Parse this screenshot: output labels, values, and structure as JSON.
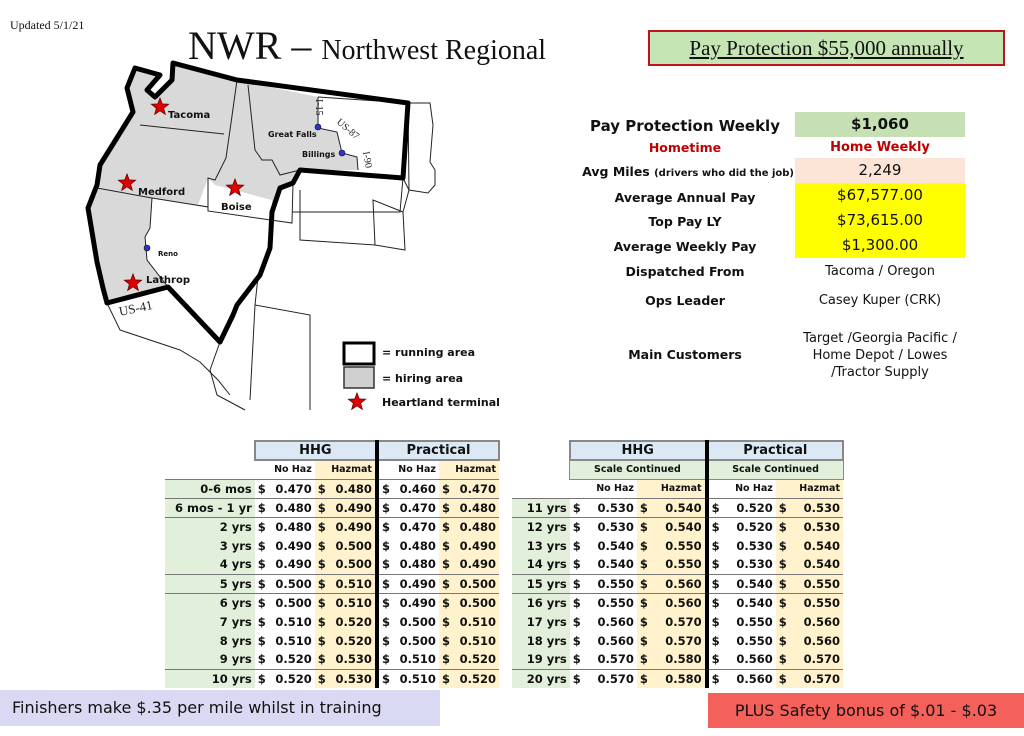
{
  "updated": "Updated 5/1/21",
  "title": {
    "main": "NWR – ",
    "sub": "Northwest Regional"
  },
  "pay_protection_banner": "Pay Protection $55,000 annually",
  "map": {
    "terminals": [
      "Tacoma",
      "Medford",
      "Boise",
      "Lathrop"
    ],
    "cities": [
      "Great Falls",
      "Billings",
      "Reno"
    ],
    "routes": [
      "I-15",
      "US-87",
      "I-90",
      "US-41"
    ],
    "legend": [
      "= running area",
      "= hiring area",
      "Heartland terminal"
    ],
    "colors": {
      "hiring": "#d9d9d9",
      "terminal": "#e00000"
    }
  },
  "info": {
    "pay_protection_weekly": {
      "label": "Pay Protection Weekly",
      "value": "$1,060"
    },
    "hometime": {
      "label": "Hometime",
      "value": "Home Weekly"
    },
    "avg_miles": {
      "label": "Avg Miles",
      "note": "(drivers who did the job)",
      "value": "2,249"
    },
    "avg_annual": {
      "label": "Average Annual Pay",
      "value": "$67,577.00"
    },
    "top_pay": {
      "label": "Top Pay LY",
      "value": "$73,615.00"
    },
    "avg_weekly": {
      "label": "Average Weekly Pay",
      "value": "$1,300.00"
    },
    "dispatched": {
      "label": "Dispatched From",
      "value": "Tacoma / Oregon"
    },
    "ops_leader": {
      "label": "Ops Leader",
      "value": "Casey Kuper (CRK)"
    },
    "customers": {
      "label": "Main Customers",
      "value": [
        "Target /Georgia Pacific /",
        "Home Depot / Lowes",
        "/Tractor Supply"
      ]
    }
  },
  "table_left": {
    "groups": [
      "HHG",
      "Practical"
    ],
    "subheaders": [
      "No Haz",
      "Hazmat",
      "No Haz",
      "Hazmat"
    ],
    "rows": [
      [
        "0-6 mos",
        "0.470",
        "0.480",
        "0.460",
        "0.470"
      ],
      [
        "6 mos - 1 yr",
        "0.480",
        "0.490",
        "0.470",
        "0.480"
      ],
      [
        "2 yrs",
        "0.480",
        "0.490",
        "0.470",
        "0.480"
      ],
      [
        "3 yrs",
        "0.490",
        "0.500",
        "0.480",
        "0.490"
      ],
      [
        "4 yrs",
        "0.490",
        "0.500",
        "0.480",
        "0.490"
      ],
      [
        "5 yrs",
        "0.500",
        "0.510",
        "0.490",
        "0.500"
      ],
      [
        "6 yrs",
        "0.500",
        "0.510",
        "0.490",
        "0.500"
      ],
      [
        "7 yrs",
        "0.510",
        "0.520",
        "0.500",
        "0.510"
      ],
      [
        "8 yrs",
        "0.510",
        "0.520",
        "0.500",
        "0.510"
      ],
      [
        "9 yrs",
        "0.520",
        "0.530",
        "0.510",
        "0.520"
      ],
      [
        "10 yrs",
        "0.520",
        "0.530",
        "0.510",
        "0.520"
      ]
    ]
  },
  "table_right": {
    "groups": [
      "HHG",
      "Practical"
    ],
    "continued": "Scale Continued",
    "subheaders": [
      "No Haz",
      "Hazmat",
      "No Haz",
      "Hazmat"
    ],
    "rows": [
      [
        "11 yrs",
        "0.530",
        "0.540",
        "0.520",
        "0.530"
      ],
      [
        "12 yrs",
        "0.530",
        "0.540",
        "0.520",
        "0.530"
      ],
      [
        "13 yrs",
        "0.540",
        "0.550",
        "0.530",
        "0.540"
      ],
      [
        "14 yrs",
        "0.540",
        "0.550",
        "0.530",
        "0.540"
      ],
      [
        "15 yrs",
        "0.550",
        "0.560",
        "0.540",
        "0.550"
      ],
      [
        "16 yrs",
        "0.550",
        "0.560",
        "0.540",
        "0.550"
      ],
      [
        "17 yrs",
        "0.560",
        "0.570",
        "0.550",
        "0.560"
      ],
      [
        "18 yrs",
        "0.560",
        "0.570",
        "0.550",
        "0.560"
      ],
      [
        "19 yrs",
        "0.570",
        "0.580",
        "0.560",
        "0.570"
      ],
      [
        "20 yrs",
        "0.570",
        "0.580",
        "0.560",
        "0.570"
      ]
    ]
  },
  "currency": "$",
  "finishers": "Finishers make $.35 per mile whilst in training",
  "bonus": "PLUS Safety bonus of $.01 - $.03"
}
